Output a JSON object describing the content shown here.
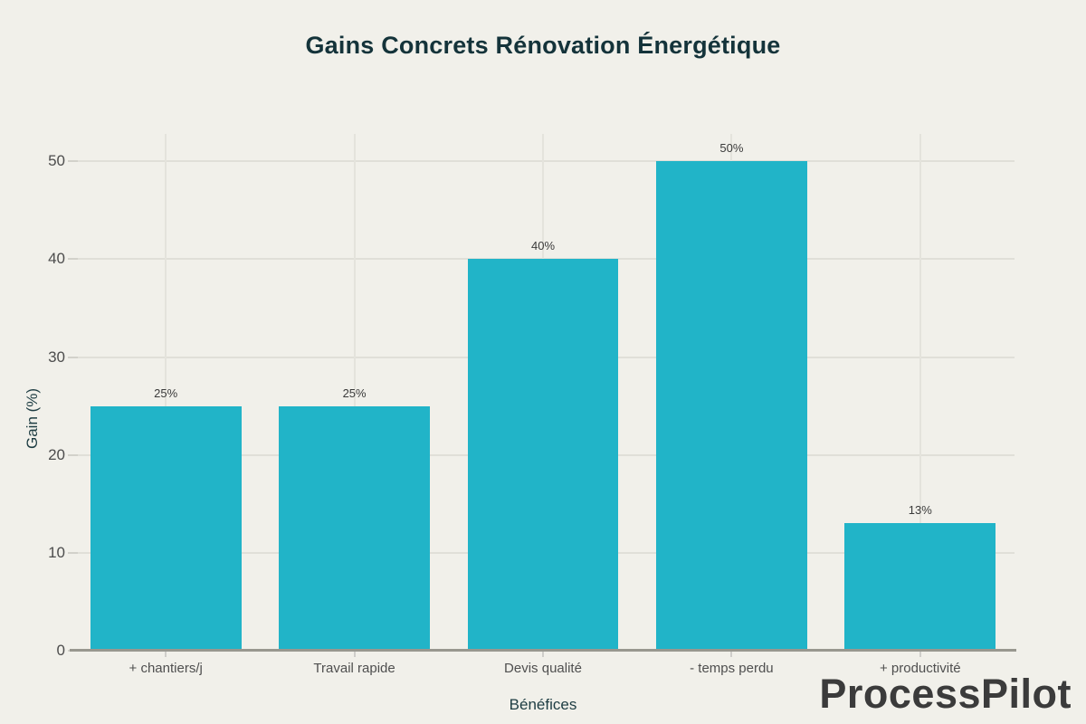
{
  "page": {
    "background": "#f1f0ea",
    "watermark": "ProcessPilot"
  },
  "colors": {
    "bar": "#21b4c8",
    "title_text": "#14333a",
    "axis_title_text": "#1d3c42",
    "tick_text": "#4d4d4d",
    "value_label_text": "#3a3a3a",
    "gridline": "#e0dfd8",
    "axis_line": "#98978f",
    "watermark_text": "#3b3b3b"
  },
  "chart_data": {
    "type": "bar",
    "title": "Gains Concrets Rénovation Énergétique",
    "xlabel": "Bénéfices",
    "ylabel": "Gain (%)",
    "categories": [
      "+ chantiers/j",
      "Travail rapide",
      "Devis qualité",
      "- temps perdu",
      "+ productivité"
    ],
    "values": [
      25,
      25,
      40,
      50,
      13
    ],
    "value_labels": [
      "25%",
      "25%",
      "40%",
      "50%",
      "13%"
    ],
    "yticks": [
      0,
      10,
      20,
      30,
      40,
      50
    ],
    "ylim": [
      0,
      52.8
    ],
    "bar_color": "#21b4c8",
    "band_fraction": 0.8,
    "grid": true,
    "legend": false
  }
}
